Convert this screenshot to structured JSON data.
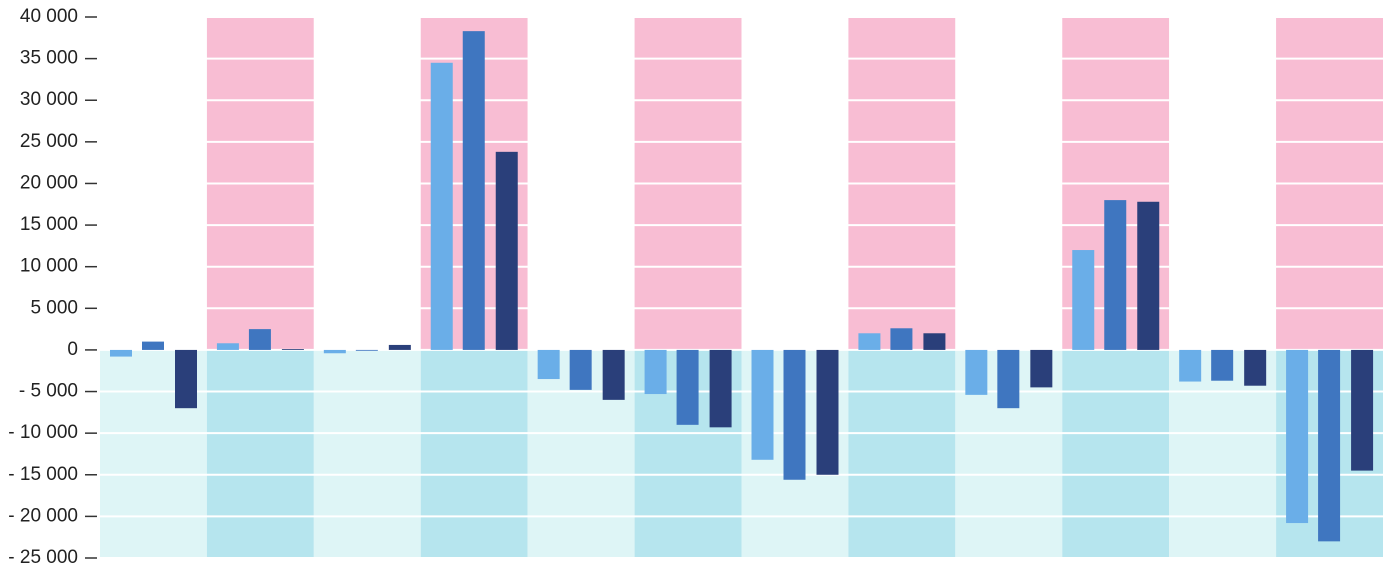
{
  "chart_data": {
    "type": "bar",
    "categories": [
      null,
      null,
      null,
      null,
      null,
      null,
      null,
      null,
      null,
      null,
      null,
      null
    ],
    "series": [
      {
        "color": "#6aaee8",
        "values": [
          -800,
          800,
          -400,
          34500,
          -3500,
          -5300,
          -13200,
          2000,
          -5400,
          12000,
          -3800,
          -20800
        ]
      },
      {
        "color": "#3f76c0",
        "values": [
          1000,
          2500,
          -100,
          38300,
          -4800,
          -9000,
          -15600,
          2600,
          -7000,
          18000,
          -3700,
          -23000
        ]
      },
      {
        "color": "#2a3f7a",
        "values": [
          -7000,
          100,
          600,
          23800,
          -6000,
          -9300,
          -15000,
          2000,
          -4500,
          17800,
          -4300,
          -14500
        ]
      }
    ],
    "ylim": [
      -25000,
      40000
    ],
    "yticks": [
      {
        "value": -25000,
        "label": "- 25 000"
      },
      {
        "value": -20000,
        "label": "- 20 000"
      },
      {
        "value": -15000,
        "label": "- 15 000"
      },
      {
        "value": -10000,
        "label": "- 10 000"
      },
      {
        "value": -5000,
        "label": "- 5 000"
      },
      0,
      {
        "value": 5000,
        "label": "5 000"
      },
      {
        "value": 10000,
        "label": "10 000"
      },
      {
        "value": 15000,
        "label": "15 000"
      },
      {
        "value": 20000,
        "label": "20 000"
      },
      {
        "value": 25000,
        "label": "25 000"
      },
      {
        "value": 30000,
        "label": "30 000"
      },
      {
        "value": 35000,
        "label": "35 000"
      },
      {
        "value": 40000,
        "label": "40 000"
      }
    ],
    "grid": true
  }
}
